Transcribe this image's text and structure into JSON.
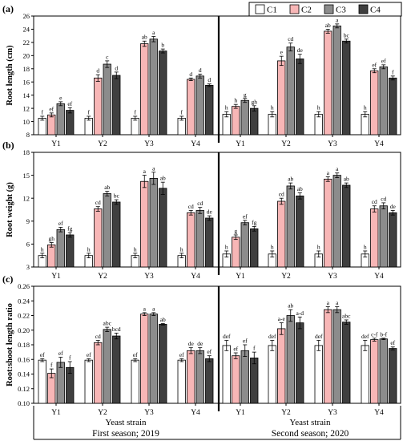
{
  "legend": {
    "items": [
      {
        "label": "C1",
        "color": "#ffffff"
      },
      {
        "label": "C2",
        "color": "#f7b6b6"
      },
      {
        "label": "C3",
        "color": "#8c8c8c"
      },
      {
        "label": "C4",
        "color": "#3f3f3f"
      }
    ]
  },
  "footer": {
    "left": {
      "strain_label": "Yeast strain",
      "season_label": "First season; 2019"
    },
    "right": {
      "strain_label": "Yeast strain",
      "season_label": "Second season; 2020"
    }
  },
  "chart_data": [
    {
      "type": "bar",
      "panel_label": "(a)",
      "ylabel": "Root length (cm)",
      "ylim": [
        8,
        26
      ],
      "yticks": [
        8,
        10,
        12,
        14,
        16,
        18,
        20,
        22,
        24,
        26
      ],
      "ytick_labels": [
        "8",
        "10",
        "12",
        "14",
        "16",
        "18",
        "20",
        "22",
        "24",
        "26"
      ],
      "groups": [
        {
          "season": "First season; 2019",
          "categories": [
            "Y1",
            "Y2",
            "Y3",
            "Y4"
          ],
          "series": [
            {
              "name": "C1",
              "values": [
                10.5,
                10.5,
                10.5,
                10.5
              ],
              "errors": [
                0.3,
                0.3,
                0.3,
                0.3
              ],
              "letters": [
                "f",
                "f",
                "f",
                "f"
              ]
            },
            {
              "name": "C2",
              "values": [
                11.0,
                16.6,
                21.8,
                16.4
              ],
              "errors": [
                0.3,
                0.5,
                0.4,
                0.2
              ],
              "letters": [
                "ef",
                "d",
                "ab",
                "d"
              ]
            },
            {
              "name": "C3",
              "values": [
                12.7,
                18.7,
                22.5,
                16.9
              ],
              "errors": [
                0.3,
                0.5,
                0.4,
                0.3
              ],
              "letters": [
                "e",
                "c",
                "a",
                "d"
              ]
            },
            {
              "name": "C4",
              "values": [
                11.7,
                17.0,
                20.7,
                15.5
              ],
              "errors": [
                0.4,
                0.5,
                0.3,
                0.2
              ],
              "letters": [
                "ef",
                "d",
                "b",
                "d"
              ]
            }
          ]
        },
        {
          "season": "Second season; 2020",
          "categories": [
            "Y1",
            "Y2",
            "Y3",
            "Y4"
          ],
          "series": [
            {
              "name": "C1",
              "values": [
                11.1,
                11.1,
                11.1,
                11.1
              ],
              "errors": [
                0.4,
                0.4,
                0.4,
                0.4
              ],
              "letters": [
                "h",
                "h",
                "h",
                "h"
              ]
            },
            {
              "name": "C2",
              "values": [
                12.3,
                19.2,
                23.7,
                17.7
              ],
              "errors": [
                0.3,
                0.7,
                0.3,
                0.3
              ],
              "letters": [
                "h",
                "e",
                "ab",
                "ef"
              ]
            },
            {
              "name": "C3",
              "values": [
                13.2,
                21.3,
                24.5,
                18.3
              ],
              "errors": [
                0.3,
                0.6,
                0.3,
                0.3
              ],
              "letters": [
                "g",
                "cd",
                "a",
                "ef"
              ]
            },
            {
              "name": "C4",
              "values": [
                12.0,
                19.5,
                22.2,
                16.6
              ],
              "errors": [
                0.4,
                0.7,
                0.3,
                0.3
              ],
              "letters": [
                "gh",
                "de",
                "bc",
                "f"
              ]
            }
          ]
        }
      ]
    },
    {
      "type": "bar",
      "panel_label": "(b)",
      "ylabel": "Root weight (g)",
      "ylim": [
        3,
        18
      ],
      "yticks": [
        3,
        6,
        9,
        12,
        15,
        18
      ],
      "ytick_labels": [
        "3",
        "6",
        "9",
        "12",
        "15",
        "18"
      ],
      "groups": [
        {
          "season": "First season; 2019",
          "categories": [
            "Y1",
            "Y2",
            "Y3",
            "Y4"
          ],
          "series": [
            {
              "name": "C1",
              "values": [
                4.5,
                4.5,
                4.5,
                4.5
              ],
              "errors": [
                0.3,
                0.3,
                0.3,
                0.3
              ],
              "letters": [
                "h",
                "h",
                "h",
                "h"
              ]
            },
            {
              "name": "C2",
              "values": [
                5.9,
                10.6,
                14.2,
                10.1
              ],
              "errors": [
                0.3,
                0.3,
                0.8,
                0.3
              ],
              "letters": [
                "gh",
                "cd",
                "a",
                "cd"
              ]
            },
            {
              "name": "C3",
              "values": [
                7.9,
                12.6,
                14.6,
                10.4
              ],
              "errors": [
                0.3,
                0.3,
                0.8,
                0.4
              ],
              "letters": [
                "ef",
                "ab",
                "a",
                "cd"
              ]
            },
            {
              "name": "C4",
              "values": [
                7.2,
                11.5,
                13.3,
                9.4
              ],
              "errors": [
                0.3,
                0.3,
                0.8,
                0.3
              ],
              "letters": [
                "fg",
                "bc",
                "ab",
                "de"
              ]
            }
          ]
        },
        {
          "season": "Second season; 2020",
          "categories": [
            "Y1",
            "Y2",
            "Y3",
            "Y4"
          ],
          "series": [
            {
              "name": "C1",
              "values": [
                4.7,
                4.7,
                4.7,
                4.7
              ],
              "errors": [
                0.4,
                0.4,
                0.4,
                0.4
              ],
              "letters": [
                "h",
                "h",
                "h",
                "h"
              ]
            },
            {
              "name": "C2",
              "values": [
                6.9,
                11.6,
                14.5,
                10.6
              ],
              "errors": [
                0.3,
                0.4,
                0.3,
                0.4
              ],
              "letters": [
                "g",
                "cd",
                "a",
                "cd"
              ]
            },
            {
              "name": "C3",
              "values": [
                8.8,
                13.6,
                15.0,
                11.0
              ],
              "errors": [
                0.3,
                0.4,
                0.3,
                0.4
              ],
              "letters": [
                "ef",
                "ab",
                "a",
                "cd"
              ]
            },
            {
              "name": "C4",
              "values": [
                8.0,
                12.3,
                13.7,
                10.1
              ],
              "errors": [
                0.3,
                0.4,
                0.3,
                0.3
              ],
              "letters": [
                "fg",
                "ab",
                "ab",
                "de"
              ]
            }
          ]
        }
      ]
    },
    {
      "type": "bar",
      "panel_label": "(c)",
      "ylabel": "Root:shoot length ratio",
      "ylim": [
        0.1,
        0.26
      ],
      "yticks": [
        0.1,
        0.12,
        0.14,
        0.16,
        0.18,
        0.2,
        0.22,
        0.24,
        0.26
      ],
      "ytick_labels": [
        "0.10",
        "0.12",
        "0.14",
        "0.16",
        "0.18",
        "0.20",
        "0.22",
        "0.24",
        "0.26"
      ],
      "groups": [
        {
          "season": "First season; 2019",
          "categories": [
            "Y1",
            "Y2",
            "Y3",
            "Y4"
          ],
          "series": [
            {
              "name": "C1",
              "values": [
                0.159,
                0.159,
                0.159,
                0.159
              ],
              "errors": [
                0.002,
                0.002,
                0.002,
                0.002
              ],
              "letters": [
                "ef",
                "ef",
                "ef",
                "ef"
              ]
            },
            {
              "name": "C2",
              "values": [
                0.141,
                0.183,
                0.222,
                0.172
              ],
              "errors": [
                0.006,
                0.003,
                0.002,
                0.004
              ],
              "letters": [
                "f",
                "cd",
                "a",
                "de"
              ]
            },
            {
              "name": "C3",
              "values": [
                0.156,
                0.201,
                0.222,
                0.172
              ],
              "errors": [
                0.007,
                0.003,
                0.002,
                0.004
              ],
              "letters": [
                "ef",
                "abc",
                "a",
                "de"
              ]
            },
            {
              "name": "C4",
              "values": [
                0.149,
                0.192,
                0.208,
                0.161
              ],
              "errors": [
                0.008,
                0.004,
                0.001,
                0.004
              ],
              "letters": [
                "f",
                "bcd",
                "ab",
                "ef"
              ]
            }
          ]
        },
        {
          "season": "Second season; 2020",
          "categories": [
            "Y1",
            "Y2",
            "Y3",
            "Y4"
          ],
          "series": [
            {
              "name": "C1",
              "values": [
                0.179,
                0.179,
                0.179,
                0.179
              ],
              "errors": [
                0.007,
                0.007,
                0.007,
                0.007
              ],
              "letters": [
                "def",
                "def",
                "def",
                "def"
              ]
            },
            {
              "name": "C2",
              "values": [
                0.165,
                0.202,
                0.228,
                0.187
              ],
              "errors": [
                0.004,
                0.008,
                0.004,
                0.002
              ],
              "letters": [
                "ef",
                "a-e",
                "a",
                "c-f"
              ]
            },
            {
              "name": "C3",
              "values": [
                0.172,
                0.22,
                0.228,
                0.188
              ],
              "errors": [
                0.008,
                0.008,
                0.004,
                0.001
              ],
              "letters": [
                "ef",
                "ab",
                "a",
                "b-f"
              ]
            },
            {
              "name": "C4",
              "values": [
                0.162,
                0.21,
                0.211,
                0.175
              ],
              "errors": [
                0.008,
                0.008,
                0.003,
                0.002
              ],
              "letters": [
                "f",
                "a-d",
                "abc",
                "ef"
              ]
            }
          ]
        }
      ]
    }
  ]
}
